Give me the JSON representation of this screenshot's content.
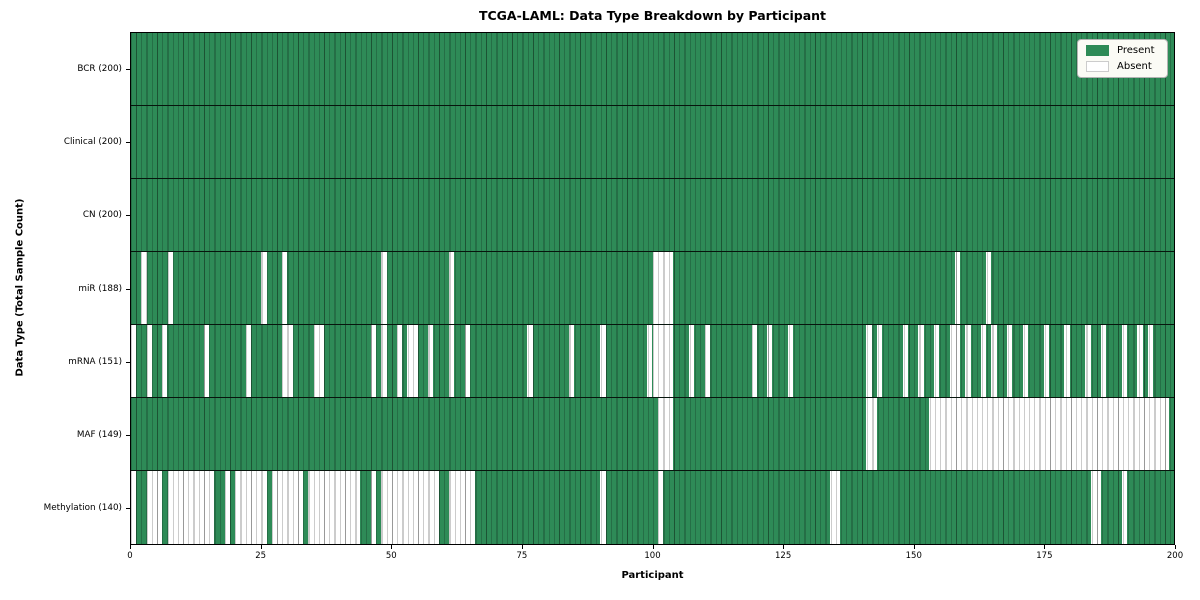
{
  "chart_data": {
    "type": "heatmap",
    "title": "TCGA-LAML: Data Type Breakdown by Participant",
    "xlabel": "Participant",
    "ylabel": "Data Type (Total Sample Count)",
    "legend": [
      "Present",
      "Absent"
    ],
    "colors": {
      "present": "#2e8b57",
      "absent": "#ffffff"
    },
    "n_participants": 200,
    "x_range": [
      0,
      200
    ],
    "x_ticks": [
      0,
      25,
      50,
      75,
      100,
      125,
      150,
      175,
      200
    ],
    "grid": "cell-edges",
    "legend_position": "upper-right",
    "rows": [
      {
        "label": "BCR (200)",
        "data_type": "BCR",
        "present_count": 200,
        "absent_participants": []
      },
      {
        "label": "Clinical (200)",
        "data_type": "Clinical",
        "present_count": 200,
        "absent_participants": []
      },
      {
        "label": "CN (200)",
        "data_type": "CN",
        "present_count": 200,
        "absent_participants": []
      },
      {
        "label": "miR (188)",
        "data_type": "miR",
        "present_count": 188,
        "absent_participants": [
          2,
          7,
          25,
          29,
          48,
          61,
          100,
          101,
          102,
          103,
          158,
          164
        ]
      },
      {
        "label": "mRNA (151)",
        "data_type": "mRNA",
        "present_count": 151,
        "absent_participants": [
          0,
          3,
          6,
          14,
          22,
          29,
          30,
          35,
          36,
          46,
          48,
          51,
          53,
          54,
          57,
          61,
          64,
          76,
          84,
          90,
          99,
          100,
          101,
          102,
          103,
          107,
          110,
          119,
          122,
          126,
          141,
          143,
          148,
          151,
          154,
          157,
          158,
          160,
          163,
          165,
          168,
          171,
          175,
          179,
          183,
          186,
          190,
          193,
          195
        ]
      },
      {
        "label": "MAF (149)",
        "data_type": "MAF",
        "present_count": 149,
        "absent_participants": [
          101,
          102,
          103,
          141,
          142,
          153,
          154,
          155,
          156,
          157,
          158,
          159,
          160,
          161,
          162,
          163,
          164,
          165,
          166,
          167,
          168,
          169,
          170,
          171,
          172,
          173,
          174,
          175,
          176,
          177,
          178,
          179,
          180,
          181,
          182,
          183,
          184,
          185,
          186,
          187,
          188,
          189,
          190,
          191,
          192,
          193,
          194,
          195,
          196,
          197,
          198
        ]
      },
      {
        "label": "Methylation (140)",
        "data_type": "Methylation",
        "present_count": 140,
        "absent_participants": [
          0,
          3,
          4,
          5,
          7,
          8,
          9,
          10,
          11,
          12,
          13,
          14,
          15,
          18,
          20,
          21,
          22,
          23,
          24,
          25,
          27,
          28,
          29,
          30,
          31,
          32,
          34,
          35,
          36,
          37,
          38,
          39,
          40,
          41,
          42,
          43,
          46,
          48,
          49,
          50,
          51,
          52,
          53,
          54,
          55,
          56,
          57,
          58,
          61,
          62,
          63,
          64,
          65,
          90,
          101,
          134,
          135,
          184,
          185,
          190
        ]
      }
    ]
  }
}
